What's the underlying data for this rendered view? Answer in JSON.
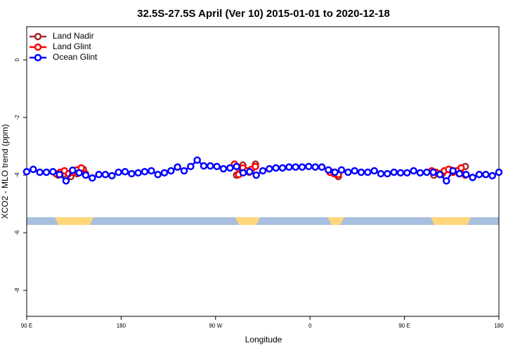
{
  "chart_data": {
    "type": "line",
    "title": "32.5S-27.5S April (Ver 10)   2015-01-01 to 2020-12-18",
    "xlabel": "Longitude",
    "ylabel": "XCO2 - MLO trend (ppm)",
    "xlim": [
      90,
      540
    ],
    "ylim": [
      -8.9,
      1.15
    ],
    "xticks": [
      {
        "value": 90,
        "label": "90 E"
      },
      180,
      {
        "value": 270,
        "label": "90 W"
      },
      {
        "value": 360,
        "label": "0"
      },
      {
        "value": 450,
        "label": "90 E"
      },
      {
        "value": 540,
        "label": "180"
      }
    ],
    "yticks": [
      -8,
      -6,
      -4,
      -2,
      0
    ],
    "legend": "upper left",
    "series": [
      {
        "name": "Land Nadir",
        "color": "#a52a2a",
        "x": [
          120,
          126,
          132,
          138,
          144,
          null,
          290,
          296,
          302,
          308,
          null,
          381,
          387,
          null,
          478,
          486,
          494,
          502,
          508
        ],
        "values": [
          -4.0,
          -3.95,
          -4.05,
          -3.95,
          -3.8,
          null,
          -4.0,
          -3.65,
          -3.9,
          -3.62,
          null,
          -3.9,
          -4.05,
          null,
          -4.0,
          -3.95,
          -3.82,
          -3.95,
          -3.7
        ]
      },
      {
        "name": "Land Glint",
        "color": "#ff0000",
        "x": [
          118,
          122,
          126,
          130,
          134,
          138,
          142,
          146,
          null,
          288,
          292,
          296,
          300,
          304,
          308,
          null,
          379,
          383,
          387,
          null,
          476,
          480,
          484,
          488,
          492,
          496,
          500,
          504,
          508
        ],
        "values": [
          -3.95,
          -3.9,
          -3.85,
          -3.95,
          -3.9,
          -3.82,
          -3.75,
          -3.95,
          null,
          -3.62,
          -3.98,
          -3.75,
          -3.85,
          -3.8,
          -3.7,
          null,
          -3.9,
          -3.95,
          -3.98,
          null,
          -3.85,
          -3.9,
          -3.95,
          -3.85,
          -3.8,
          -3.9,
          -3.85,
          -3.75,
          -4.0
        ]
      },
      {
        "name": "Ocean Glint",
        "color": "#0000ff",
        "x": [
          90,
          96.25,
          102.5,
          108.75,
          115,
          121.25,
          127.5,
          133.75,
          140,
          146.25,
          152.5,
          158.75,
          165,
          171.25,
          177.5,
          183.75,
          190,
          196.25,
          202.5,
          208.75,
          215,
          221.25,
          227.5,
          233.75,
          240,
          246.25,
          252.5,
          258.75,
          265,
          271.25,
          277.5,
          283.75,
          290,
          296.25,
          302.5,
          308.75,
          315,
          321.25,
          327.5,
          333.75,
          340,
          346.25,
          352.5,
          358.75,
          365,
          371.25,
          377.5,
          383.75,
          390,
          396.25,
          402.5,
          408.75,
          415,
          421.25,
          427.5,
          433.75,
          440,
          446.25,
          452.5,
          458.75,
          465,
          471.25,
          477.5,
          483.75,
          490,
          496.25,
          502.5,
          508.75,
          515,
          521.25,
          527.5,
          533.75,
          540
        ],
        "values": [
          -3.88,
          -3.8,
          -3.9,
          -3.9,
          -3.88,
          -3.98,
          -4.2,
          -3.83,
          -3.92,
          -4.0,
          -4.1,
          -3.98,
          -3.98,
          -4.02,
          -3.9,
          -3.88,
          -3.95,
          -3.92,
          -3.88,
          -3.85,
          -3.98,
          -3.92,
          -3.85,
          -3.72,
          -3.85,
          -3.7,
          -3.48,
          -3.68,
          -3.68,
          -3.7,
          -3.78,
          -3.75,
          -3.7,
          -3.92,
          -3.88,
          -4.0,
          -3.85,
          -3.78,
          -3.75,
          -3.75,
          -3.72,
          -3.72,
          -3.72,
          -3.7,
          -3.72,
          -3.72,
          -3.82,
          -3.9,
          -3.82,
          -3.9,
          -3.85,
          -3.9,
          -3.9,
          -3.85,
          -3.95,
          -3.95,
          -3.9,
          -3.92,
          -3.92,
          -3.85,
          -3.92,
          -3.9,
          -3.9,
          -3.98,
          -4.2,
          -3.85,
          -3.95,
          -3.98,
          -4.08,
          -3.98,
          -3.98,
          -4.02,
          -3.9
        ]
      }
    ]
  }
}
